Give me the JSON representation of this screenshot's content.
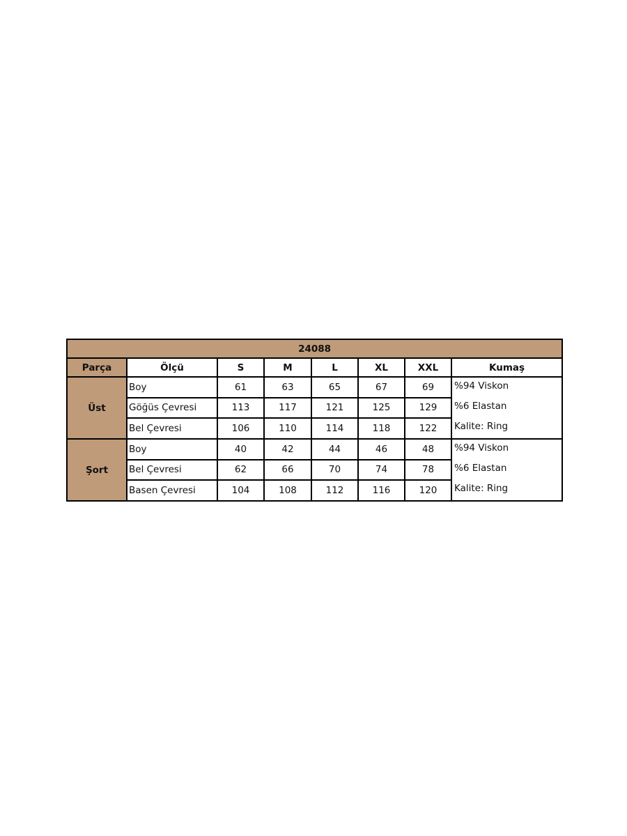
{
  "title": "24088",
  "headers": [
    "Parça",
    "Ölçü",
    "S",
    "M",
    "L",
    "XL",
    "XXL",
    "Kumaş"
  ],
  "colors": {
    "header_bg": "#bf9b7a",
    "border": "#000000"
  },
  "groups": [
    {
      "part": "Üst",
      "rows": [
        {
          "measure": "Boy",
          "values": [
            "61",
            "63",
            "65",
            "67",
            "69"
          ]
        },
        {
          "measure": "Göğüs Çevresi",
          "values": [
            "113",
            "117",
            "121",
            "125",
            "129"
          ]
        },
        {
          "measure": "Bel Çevresi",
          "values": [
            "106",
            "110",
            "114",
            "118",
            "122"
          ]
        }
      ],
      "fabric": [
        "%94 Viskon",
        "%6 Elastan",
        "Kalite: Ring"
      ]
    },
    {
      "part": "Şort",
      "rows": [
        {
          "measure": "Boy",
          "values": [
            "40",
            "42",
            "44",
            "46",
            "48"
          ]
        },
        {
          "measure": "Bel Çevresi",
          "values": [
            "62",
            "66",
            "70",
            "74",
            "78"
          ]
        },
        {
          "measure": "Basen Çevresi",
          "values": [
            "104",
            "108",
            "112",
            "116",
            "120"
          ]
        }
      ],
      "fabric": [
        "%94 Viskon",
        "%6 Elastan",
        "Kalite: Ring"
      ]
    }
  ]
}
